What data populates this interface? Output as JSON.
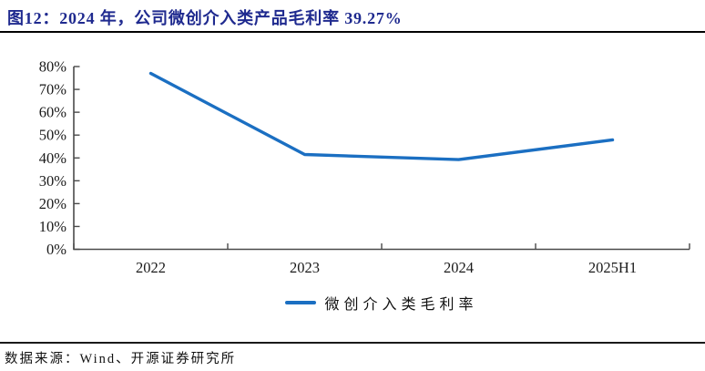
{
  "header": {
    "title": "图12：2024 年，公司微创介入类产品毛利率 39.27%"
  },
  "chart_data": {
    "type": "line",
    "categories": [
      "2022",
      "2023",
      "2024",
      "2025H1"
    ],
    "series": [
      {
        "name": "微创介入类毛利率",
        "values": [
          77.0,
          41.5,
          39.27,
          47.9
        ]
      }
    ],
    "title": "",
    "xlabel": "",
    "ylabel": "",
    "ylim": [
      0,
      80
    ],
    "ytick_step": 10,
    "ytick_labels": [
      "0%",
      "10%",
      "20%",
      "30%",
      "40%",
      "50%",
      "60%",
      "70%",
      "80%"
    ],
    "grid": false,
    "legend_position": "bottom"
  },
  "footer": {
    "source": "数据来源：Wind、开源证券研究所"
  },
  "colors": {
    "title_text": "#1F2A8F",
    "series_line": "#1B6FC2",
    "axis": "#4a4a4a",
    "tick_text": "#1a1a1a",
    "divider": "#000000"
  }
}
